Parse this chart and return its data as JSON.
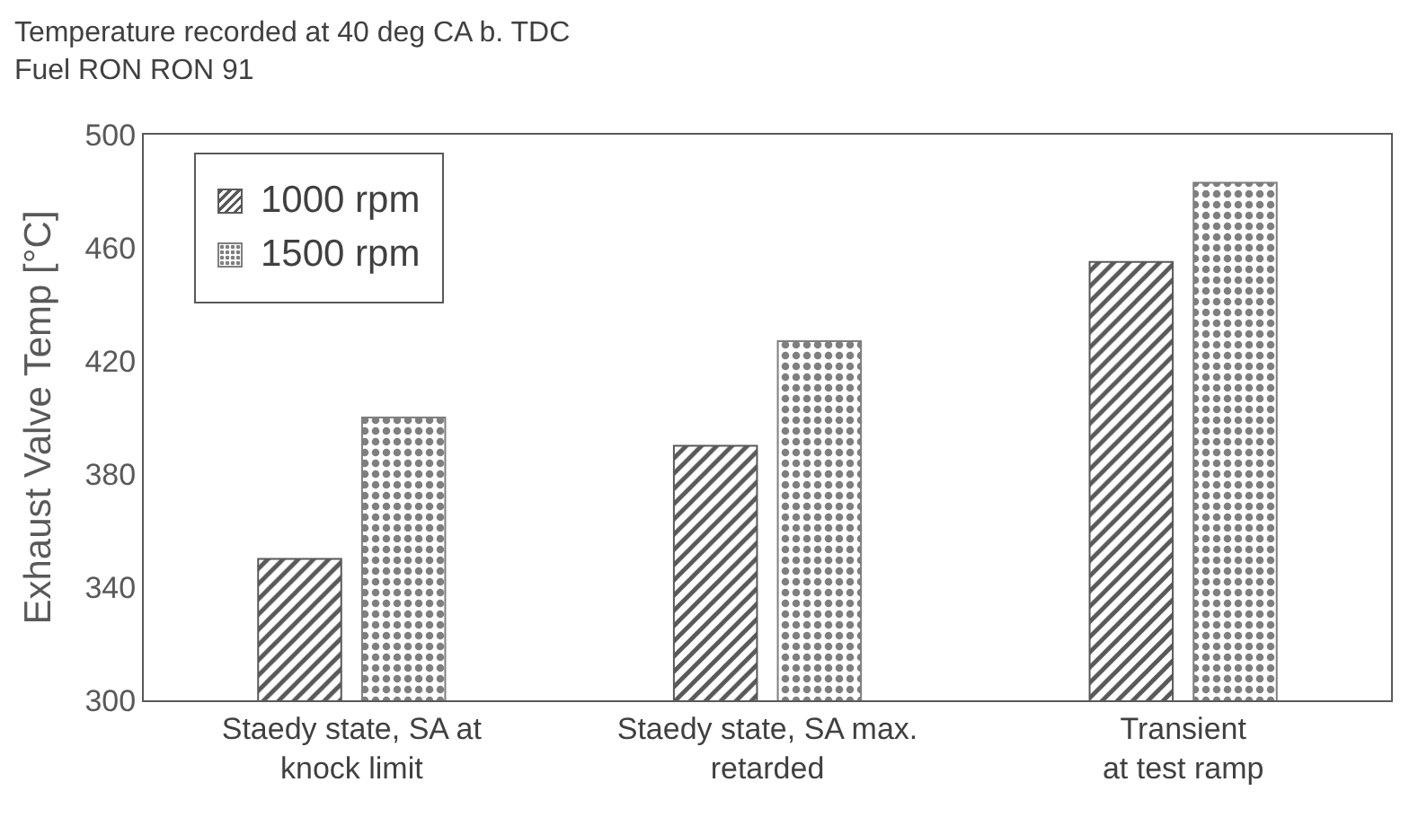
{
  "chart_data": {
    "type": "bar",
    "title": "Temperature recorded at 40 deg CA b. TDC",
    "subtitle": "Fuel RON RON 91",
    "ylabel": "Exhaust Valve Temp [°C]",
    "categories": [
      "Staedy state, SA at\nknock limit",
      "Staedy state, SA max.\nretarded",
      "Transient\nat test ramp"
    ],
    "series": [
      {
        "name": "1000 rpm",
        "color": "#595959",
        "values": [
          350,
          390,
          455
        ]
      },
      {
        "name": "1500 rpm",
        "color": "#7f7f7f",
        "values": [
          400,
          427,
          483
        ]
      }
    ],
    "ylim": [
      300,
      500
    ],
    "yticks": [
      300,
      340,
      380,
      420,
      460,
      500
    ],
    "grid": false,
    "legend": "top left"
  }
}
